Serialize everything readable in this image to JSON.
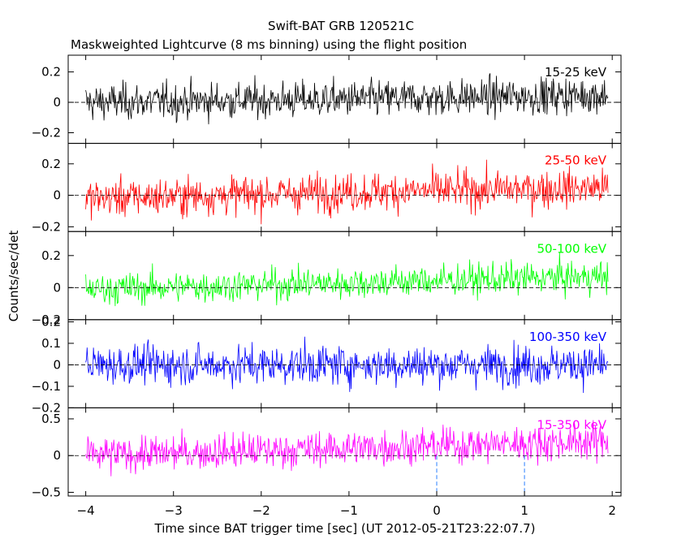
{
  "title": "Swift-BAT GRB 120521C",
  "subtitle": "Maskweighted Lightcurve (8 ms binning) using the flight position",
  "chart_data": {
    "type": "line",
    "title": "Swift-BAT GRB 120521C",
    "subtitle": "Maskweighted Lightcurve (8 ms binning) using the flight position",
    "xlabel": "Time since BAT trigger time [sec] (UT 2012-05-21T23:22:07.7)",
    "ylabel": "Counts/sec/det",
    "xlim": [
      -4.2,
      2.1
    ],
    "x_ticks": [
      -4,
      -3,
      -2,
      -1,
      0,
      1,
      2
    ],
    "x_tick_labels": [
      "−4",
      "−3",
      "−2",
      "−1",
      "0",
      "1",
      "2"
    ],
    "x_range": [
      -4.0,
      1.95
    ],
    "bin_width_sec": 0.008,
    "reference_lines": {
      "dashed_horizontal_y": 0,
      "dashed_vertical_x": [
        0,
        1
      ]
    },
    "panels": [
      {
        "name": "15-25 keV",
        "color": "#000000",
        "ylim": [
          -0.27,
          0.31
        ],
        "yticks": [
          -0.2,
          0,
          0.2
        ],
        "ytick_labels": [
          "−0.2",
          "0",
          "0.2"
        ],
        "level": [
          0.0,
          0.02,
          0.05
        ],
        "noise": 0.085,
        "mark_trigger": false
      },
      {
        "name": "25-50 keV",
        "color": "#ff0000",
        "ylim": [
          -0.23,
          0.33
        ],
        "yticks": [
          -0.2,
          0,
          0.2
        ],
        "ytick_labels": [
          "−0.2",
          "0",
          "0.2"
        ],
        "level": [
          -0.02,
          0.02,
          0.05
        ],
        "noise": 0.085,
        "mark_trigger": false
      },
      {
        "name": "50-100 keV",
        "color": "#00ff00",
        "ylim": [
          -0.2,
          0.35
        ],
        "yticks": [
          -0.2,
          0,
          0.2
        ],
        "ytick_labels": [
          "−0.2",
          "0",
          "0.2"
        ],
        "level": [
          -0.01,
          0.03,
          0.07
        ],
        "noise": 0.07,
        "mark_trigger": false
      },
      {
        "name": "100-350 keV",
        "color": "#0000ff",
        "ylim": [
          -0.2,
          0.21
        ],
        "yticks": [
          -0.2,
          -0.1,
          0,
          0.1,
          0.2
        ],
        "ytick_labels": [
          "−0.2",
          "−0.1",
          "0",
          "0.1",
          "0.2"
        ],
        "level": [
          0.0,
          0.0,
          0.0
        ],
        "noise": 0.065,
        "mark_trigger": false
      },
      {
        "name": "15-350 keV",
        "color": "#ff00ff",
        "ylim": [
          -0.55,
          0.65
        ],
        "yticks": [
          -0.5,
          0,
          0.5
        ],
        "ytick_labels": [
          "−0.5",
          "0",
          "0.5"
        ],
        "level": [
          0.0,
          0.1,
          0.2
        ],
        "noise": 0.17,
        "mark_trigger": true
      }
    ]
  }
}
